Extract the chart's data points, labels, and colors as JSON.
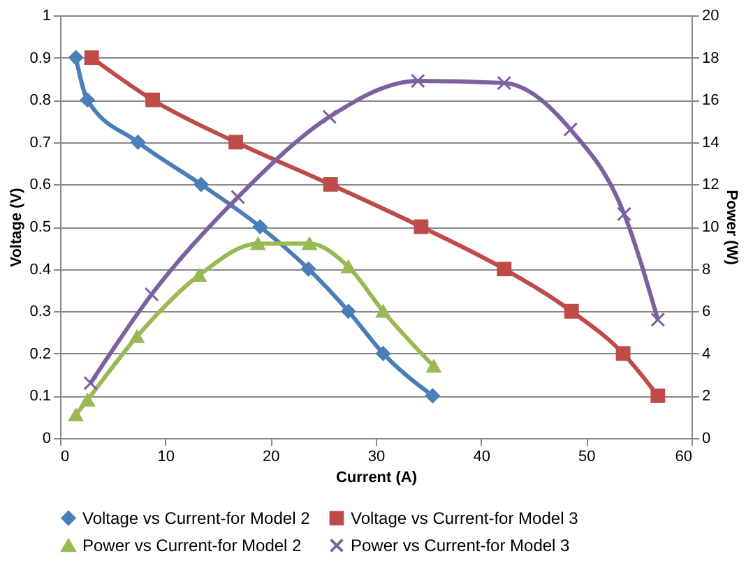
{
  "chart_data": {
    "type": "line",
    "xlabel": "Current (A)",
    "ylabel": "Voltage (V)",
    "y2label": "Power (W)",
    "xlim": [
      0,
      60
    ],
    "xticks": [
      0,
      10,
      20,
      30,
      40,
      50,
      60
    ],
    "ylim": [
      0,
      1
    ],
    "yticks": [
      0,
      0.1,
      0.2,
      0.3,
      0.4,
      0.5,
      0.6,
      0.7,
      0.8,
      0.9,
      1
    ],
    "y2lim": [
      0,
      20
    ],
    "y2ticks": [
      0,
      2,
      4,
      6,
      8,
      10,
      12,
      14,
      16,
      18,
      20
    ],
    "grid": "y",
    "legend": "bottom",
    "series": [
      {
        "name": "Voltage vs Current-for Model 2",
        "color": "#4a7ebb",
        "marker": "diamond",
        "x": [
          1.5,
          2.6,
          7.4,
          13.4,
          19.0,
          23.6,
          27.4,
          30.7,
          35.4
        ],
        "values": [
          0.9,
          0.8,
          0.7,
          0.6,
          0.5,
          0.4,
          0.3,
          0.2,
          0.1
        ]
      },
      {
        "name": "Voltage vs Current-for Model 3",
        "color": "#be4b48",
        "marker": "square",
        "x": [
          3.0,
          8.8,
          16.7,
          25.7,
          34.3,
          42.2,
          48.6,
          53.5,
          56.8
        ],
        "values": [
          0.9,
          0.8,
          0.7,
          0.6,
          0.5,
          0.4,
          0.3,
          0.2,
          0.1
        ]
      },
      {
        "name": "Power vs Current-for Model 2",
        "color": "#98b954",
        "marker": "triangle",
        "axis": "y2",
        "x": [
          1.5,
          2.6,
          7.3,
          13.2,
          18.8,
          23.7,
          27.4,
          30.7,
          35.5
        ],
        "values": [
          1.1,
          1.8,
          4.8,
          7.7,
          9.2,
          9.2,
          8.1,
          6.0,
          3.4
        ]
      },
      {
        "name": "Power vs Current-for Model 3",
        "color": "#7d60a0",
        "marker": "cross",
        "axis": "y2",
        "x": [
          2.9,
          8.7,
          16.9,
          25.6,
          34.0,
          42.2,
          48.5,
          53.6,
          56.8
        ],
        "values": [
          2.6,
          6.8,
          11.4,
          15.2,
          16.9,
          16.8,
          14.6,
          10.6,
          5.6
        ]
      }
    ]
  }
}
